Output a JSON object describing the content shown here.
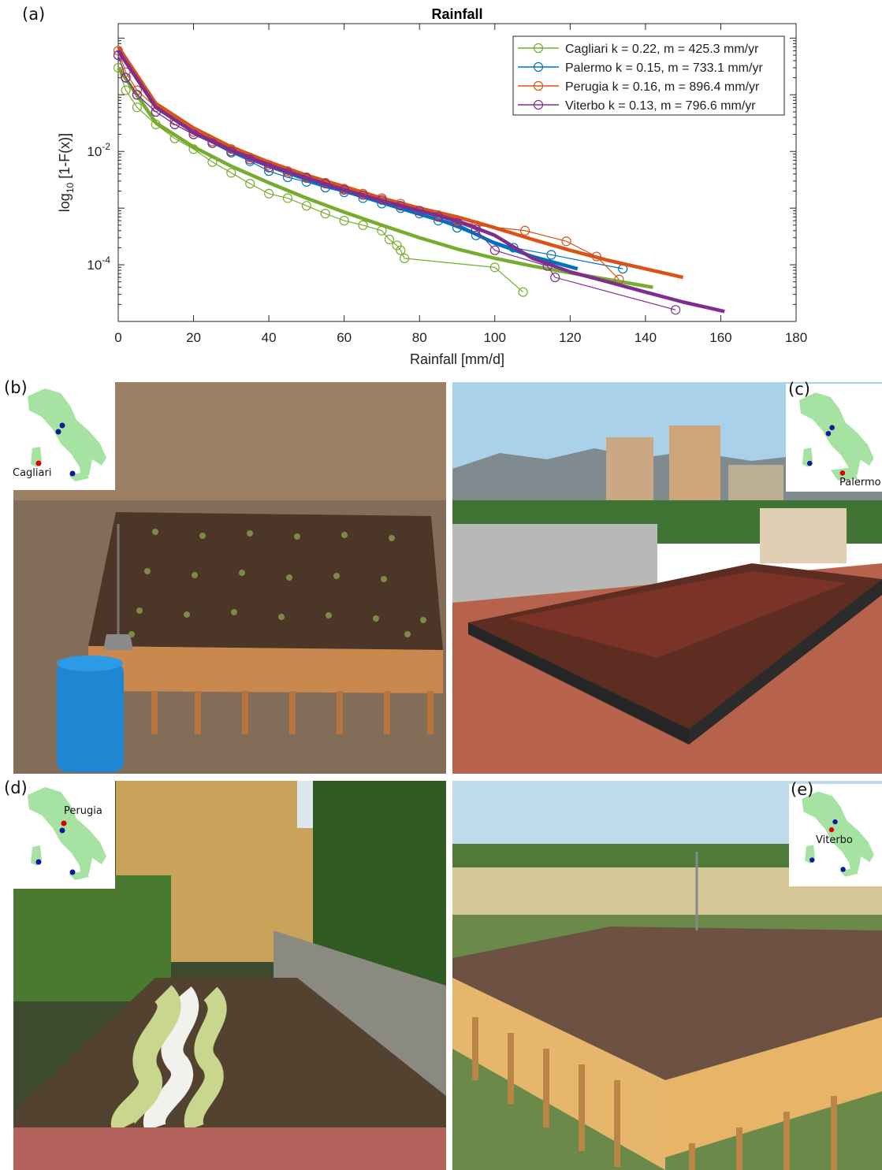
{
  "panels": {
    "a": "(a)",
    "b": "(b)",
    "c": "(c)",
    "d": "(d)",
    "e": "(e)"
  },
  "insets": {
    "b": "Cagliari",
    "c": "Palermo",
    "d": "Perugia",
    "e": "Viterbo"
  },
  "photos": {
    "b": "Green roof test bed on wooden frame with blue water tank",
    "c": "Rooftop green roof in Palermo with buildings and mountains",
    "d": "Garden green roof in Perugia with white gravel path",
    "e": "Wooden-frame green roof in Viterbo in open field"
  },
  "colors": {
    "cagliari": "#77ac30",
    "palermo": "#0072bd",
    "perugia": "#d95319",
    "viterbo": "#7e2f8e",
    "italy": "#a6e3a3",
    "site_dot": "#0a1aa0",
    "highlight_dot": "#e00000"
  },
  "chart_data": {
    "type": "line",
    "title": "Rainfall",
    "xlabel": "Rainfall [mm/d]",
    "ylabel": "log10 [1-F(x)]",
    "xlim": [
      0,
      180
    ],
    "ylim": [
      1e-05,
      1.8
    ],
    "yscale": "log",
    "xticks": [
      0,
      20,
      40,
      60,
      80,
      100,
      120,
      140,
      160,
      180
    ],
    "yticks": [
      0.01,
      0.0001
    ],
    "yticklabels": [
      "10-2",
      "10-4"
    ],
    "grid": false,
    "legend_position": "top-right",
    "series": [
      {
        "name": "Cagliari k = 0.22, m = 425.3 mm/yr",
        "color": "#77ac30",
        "empirical": {
          "x": [
            0,
            2,
            5,
            10,
            15,
            20,
            25,
            30,
            35,
            40,
            45,
            50,
            55,
            60,
            65,
            70,
            72,
            74,
            75,
            76,
            100,
            107.5
          ],
          "y": [
            0.3,
            0.12,
            0.06,
            0.03,
            0.017,
            0.011,
            0.0065,
            0.0042,
            0.0027,
            0.0018,
            0.0015,
            0.0011,
            0.0008,
            0.0006,
            0.0005,
            0.0004,
            0.00028,
            0.00022,
            0.00018,
            0.00013,
            9e-05,
            3.3e-05
          ]
        },
        "fit": {
          "x": [
            0,
            10,
            20,
            30,
            40,
            50,
            60,
            70,
            80,
            90,
            100,
            110,
            120,
            130,
            142
          ],
          "y": [
            0.3,
            0.032,
            0.012,
            0.0055,
            0.0028,
            0.0015,
            0.00085,
            0.0005,
            0.0003,
            0.00019,
            0.00013,
            9.5e-05,
            7.2e-05,
            5.5e-05,
            4e-05
          ]
        }
      },
      {
        "name": "Palermo k = 0.15, m = 733.1 mm/yr",
        "color": "#0072bd",
        "empirical": {
          "x": [
            0,
            2,
            5,
            10,
            15,
            20,
            25,
            30,
            35,
            40,
            45,
            50,
            55,
            60,
            65,
            70,
            75,
            80,
            85,
            90,
            95,
            105,
            115,
            134
          ],
          "y": [
            0.5,
            0.2,
            0.1,
            0.05,
            0.03,
            0.02,
            0.014,
            0.0095,
            0.0067,
            0.0045,
            0.0035,
            0.0029,
            0.0023,
            0.0019,
            0.0015,
            0.0012,
            0.001,
            0.0008,
            0.0006,
            0.00045,
            0.00033,
            0.0002,
            0.00015,
            8.5e-05
          ]
        },
        "fit": {
          "x": [
            0,
            10,
            20,
            30,
            40,
            50,
            60,
            70,
            80,
            90,
            100,
            110,
            122
          ],
          "y": [
            0.6,
            0.06,
            0.022,
            0.01,
            0.0055,
            0.0032,
            0.002,
            0.00125,
            0.00078,
            0.0005,
            0.00024,
            0.00014,
            8.5e-05
          ]
        }
      },
      {
        "name": "Perugia k = 0.16, m = 896.4 mm/yr",
        "color": "#d95319",
        "empirical": {
          "x": [
            0,
            2,
            5,
            10,
            15,
            20,
            25,
            30,
            35,
            40,
            45,
            50,
            55,
            60,
            65,
            70,
            75,
            80,
            85,
            90,
            95,
            108,
            119,
            127,
            133
          ],
          "y": [
            0.6,
            0.25,
            0.12,
            0.06,
            0.035,
            0.022,
            0.015,
            0.011,
            0.0078,
            0.0058,
            0.0045,
            0.0035,
            0.0028,
            0.0022,
            0.0018,
            0.0015,
            0.0012,
            0.0009,
            0.00075,
            0.0006,
            0.0005,
            0.0004,
            0.00026,
            0.00014,
            5.5e-05
          ]
        },
        "fit": {
          "x": [
            0,
            10,
            20,
            30,
            40,
            50,
            60,
            70,
            80,
            90,
            100,
            110,
            120,
            130,
            140,
            150
          ],
          "y": [
            0.7,
            0.07,
            0.026,
            0.012,
            0.0065,
            0.0038,
            0.0024,
            0.0015,
            0.001,
            0.0007,
            0.00045,
            0.00028,
            0.00018,
            0.00012,
            8.5e-05,
            6e-05
          ]
        }
      },
      {
        "name": "Viterbo k = 0.13, m = 796.6 mm/yr",
        "color": "#7e2f8e",
        "empirical": {
          "x": [
            0,
            2,
            5,
            10,
            15,
            20,
            25,
            30,
            35,
            40,
            45,
            50,
            55,
            60,
            65,
            70,
            75,
            80,
            85,
            90,
            95,
            100,
            114,
            116,
            148
          ],
          "y": [
            0.5,
            0.2,
            0.1,
            0.05,
            0.03,
            0.02,
            0.014,
            0.01,
            0.0072,
            0.0052,
            0.0042,
            0.0034,
            0.0027,
            0.0021,
            0.0017,
            0.0014,
            0.0011,
            0.0009,
            0.0007,
            0.00055,
            0.00042,
            0.00018,
            9.5e-05,
            6e-05,
            1.6e-05
          ]
        },
        "fit": {
          "x": [
            0,
            10,
            20,
            30,
            40,
            50,
            60,
            70,
            80,
            90,
            100,
            110,
            120,
            130,
            140,
            150,
            161
          ],
          "y": [
            0.6,
            0.06,
            0.022,
            0.0105,
            0.0058,
            0.0034,
            0.0021,
            0.00135,
            0.0009,
            0.0006,
            0.00033,
            0.00013,
            7.5e-05,
            5e-05,
            3.3e-05,
            2.2e-05,
            1.5e-05
          ]
        }
      }
    ]
  }
}
